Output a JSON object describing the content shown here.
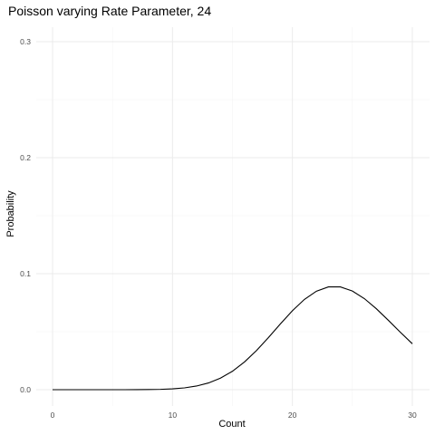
{
  "chart_data": {
    "type": "line",
    "title": "Poisson varying Rate Parameter, 24",
    "xlabel": "Count",
    "ylabel": "Probability",
    "xlim": [
      0,
      30
    ],
    "ylim": [
      0,
      0.3
    ],
    "x_ticks": [
      0,
      10,
      20,
      30
    ],
    "y_ticks": [
      0.0,
      0.1,
      0.2,
      0.3
    ],
    "x_tick_labels": [
      "0",
      "10",
      "20",
      "30"
    ],
    "y_tick_labels": [
      "0.0",
      "0.1",
      "0.2",
      "0.3"
    ],
    "grid": true,
    "legend": "none",
    "series": [
      {
        "color": "#000000",
        "x": [
          0,
          1,
          2,
          3,
          4,
          5,
          6,
          7,
          8,
          9,
          10,
          11,
          12,
          13,
          14,
          15,
          16,
          17,
          18,
          19,
          20,
          21,
          22,
          23,
          24,
          25,
          26,
          27,
          28,
          29,
          30
        ],
        "y": [
          0,
          0,
          0,
          0,
          0,
          0,
          1e-05,
          3e-05,
          0.00011,
          0.0003,
          0.00072,
          0.00157,
          0.00314,
          0.0058,
          0.00994,
          0.01591,
          0.02386,
          0.03369,
          0.04492,
          0.05674,
          0.06809,
          0.07782,
          0.0849,
          0.08859,
          0.08859,
          0.08505,
          0.07851,
          0.06978,
          0.05981,
          0.0495,
          0.0396
        ]
      }
    ]
  }
}
